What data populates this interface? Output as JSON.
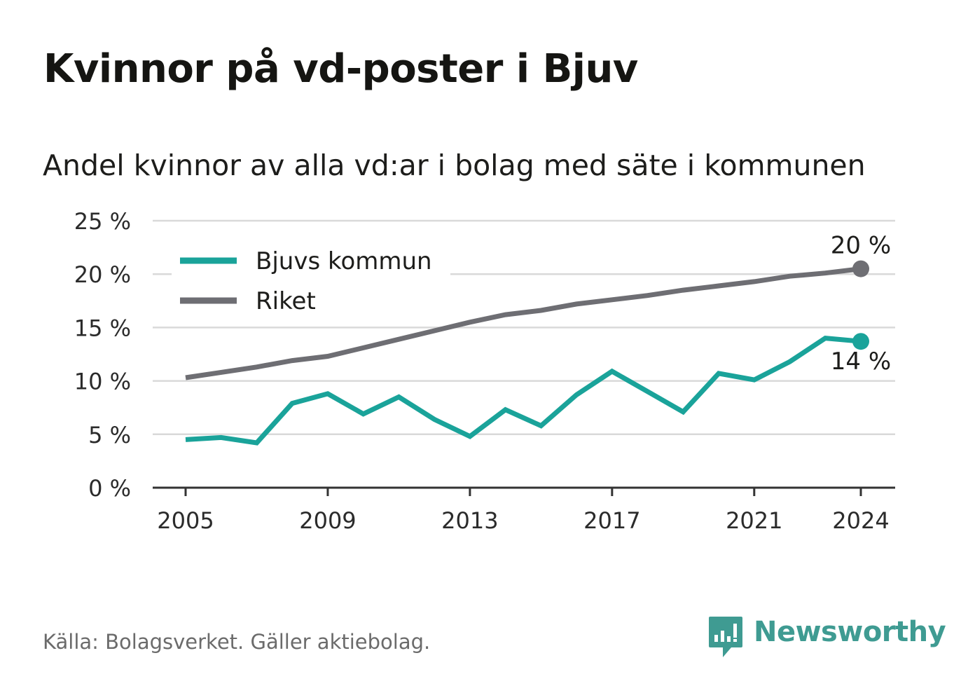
{
  "title": "Kvinnor på vd-poster i Bjuv",
  "subtitle": "Andel kvinnor av alla vd:ar i bolag med säte i kommunen",
  "source": "Källa: Bolagsverket. Gäller aktiebolag.",
  "brand": "Newsworthy",
  "colors": {
    "bjuv": "#1aa39a",
    "riket": "#6e6e73",
    "grid": "#d9d9d9",
    "axis": "#333333",
    "brand": "#3f9b92"
  },
  "chart_data": {
    "type": "line",
    "x": [
      2005,
      2006,
      2007,
      2008,
      2009,
      2010,
      2011,
      2012,
      2013,
      2014,
      2015,
      2016,
      2017,
      2018,
      2019,
      2020,
      2021,
      2022,
      2023,
      2024
    ],
    "series": [
      {
        "name": "Bjuvs kommun",
        "color": "#1aa39a",
        "values": [
          4.5,
          4.7,
          4.2,
          7.9,
          8.8,
          6.9,
          8.5,
          6.4,
          4.8,
          7.3,
          5.8,
          8.7,
          10.9,
          9.0,
          7.1,
          10.7,
          10.1,
          11.8,
          14.0,
          13.7
        ],
        "end_label": "14 %"
      },
      {
        "name": "Riket",
        "color": "#6e6e73",
        "values": [
          10.3,
          10.8,
          11.3,
          11.9,
          12.3,
          13.1,
          13.9,
          14.7,
          15.5,
          16.2,
          16.6,
          17.2,
          17.6,
          18.0,
          18.5,
          18.9,
          19.3,
          19.8,
          20.1,
          20.5
        ],
        "end_label": "20 %"
      }
    ],
    "ylim": [
      0,
      25
    ],
    "yticks": [
      0,
      5,
      10,
      15,
      20,
      25
    ],
    "ytick_labels": [
      "0 %",
      "5 %",
      "10 %",
      "15 %",
      "20 %",
      "25 %"
    ],
    "xticks": [
      2005,
      2009,
      2013,
      2017,
      2021,
      2024
    ],
    "xtick_labels": [
      "2005",
      "2009",
      "2013",
      "2017",
      "2021",
      "2024"
    ],
    "xlabel": "",
    "ylabel": "",
    "grid": true,
    "legend": {
      "placement": "top-left",
      "entries": [
        "Bjuvs kommun",
        "Riket"
      ]
    }
  }
}
